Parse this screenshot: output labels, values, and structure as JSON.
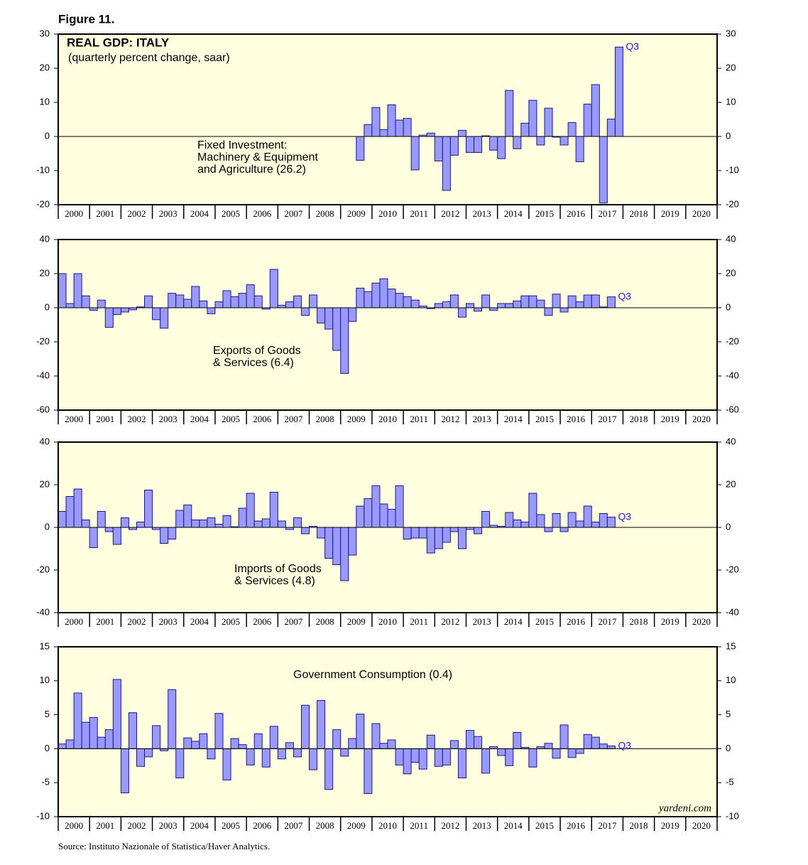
{
  "figure": "Figure 11.",
  "source": "Source: Instituto Nazionale of Statistica/Haver Analytics.",
  "watermark": "yardeni.com",
  "chart_data": [
    {
      "type": "bar",
      "title": "REAL GDP: ITALY",
      "subtitle": "(quarterly percent change, saar)",
      "annotation": [
        "Fixed Investment:",
        "Machinery & Equipment",
        "and Agriculture (26.2)"
      ],
      "end_label": "Q3",
      "color": "#9999ff",
      "categories": [
        "2000",
        null,
        null,
        null,
        "2001",
        null,
        null,
        null,
        "2002",
        null,
        null,
        null,
        "2003",
        null,
        null,
        null,
        "2004",
        null,
        null,
        null,
        "2005",
        null,
        null,
        null,
        "2006",
        null,
        null,
        null,
        "2007",
        null,
        null,
        null,
        "2008",
        null,
        null,
        null,
        "2009",
        null,
        null,
        null,
        "2010",
        null,
        null,
        null,
        "2011",
        null,
        null,
        null,
        "2012",
        null,
        null,
        null,
        "2013",
        null,
        null,
        null,
        "2014",
        null,
        null,
        null,
        "2015",
        null,
        null,
        null,
        "2016",
        null,
        null,
        null,
        "2017",
        null,
        null,
        null,
        "2018",
        null,
        null,
        null,
        "2019",
        null,
        null,
        null,
        "2020",
        null,
        null,
        null
      ],
      "values": [
        null,
        null,
        null,
        null,
        null,
        null,
        null,
        null,
        null,
        null,
        null,
        null,
        null,
        null,
        null,
        null,
        null,
        null,
        null,
        null,
        null,
        null,
        null,
        null,
        null,
        null,
        null,
        null,
        null,
        null,
        null,
        null,
        null,
        null,
        null,
        null,
        null,
        null,
        -7,
        3.5,
        8.5,
        2,
        9.3,
        4.8,
        5.3,
        -9.8,
        0.4,
        1,
        -7.2,
        -15.8,
        -5.5,
        1.8,
        -4.7,
        -4.7,
        0.2,
        -4,
        -6.5,
        13.5,
        -3.6,
        3.9,
        10.6,
        -2.5,
        8.3,
        -0.2,
        -2.5,
        4.1,
        -7.4,
        9.5,
        15.2,
        -19.5,
        5.1,
        26.2,
        null,
        null,
        null,
        null,
        null,
        null,
        null,
        null,
        null,
        null,
        null,
        null
      ],
      "ylim": [
        -20,
        30
      ],
      "yticks": [
        -20,
        -10,
        0,
        10,
        20,
        30
      ]
    },
    {
      "type": "bar",
      "annotation": [
        "Exports of Goods",
        "& Services (6.4)"
      ],
      "end_label": "Q3",
      "color": "#9999ff",
      "categories": [
        "2000",
        null,
        null,
        null,
        "2001",
        null,
        null,
        null,
        "2002",
        null,
        null,
        null,
        "2003",
        null,
        null,
        null,
        "2004",
        null,
        null,
        null,
        "2005",
        null,
        null,
        null,
        "2006",
        null,
        null,
        null,
        "2007",
        null,
        null,
        null,
        "2008",
        null,
        null,
        null,
        "2009",
        null,
        null,
        null,
        "2010",
        null,
        null,
        null,
        "2011",
        null,
        null,
        null,
        "2012",
        null,
        null,
        null,
        "2013",
        null,
        null,
        null,
        "2014",
        null,
        null,
        null,
        "2015",
        null,
        null,
        null,
        "2016",
        null,
        null,
        null,
        "2017",
        null,
        null,
        null,
        "2018",
        null,
        null,
        null,
        "2019",
        null,
        null,
        null,
        "2020",
        null,
        null,
        null
      ],
      "values": [
        20,
        2.5,
        20,
        7,
        -1.5,
        4.5,
        -11.5,
        -4,
        -2.5,
        -1.2,
        0.5,
        7,
        -7,
        -12,
        8.5,
        7.5,
        5,
        12.5,
        4,
        -3.5,
        3.5,
        10,
        6.5,
        8.5,
        13.5,
        7,
        -0.8,
        22.5,
        1.5,
        3.5,
        7,
        -4.5,
        7.5,
        -9,
        -12.5,
        -25,
        -38.5,
        -8,
        11.5,
        9.5,
        14.5,
        17,
        11,
        8.5,
        6.5,
        4.5,
        1,
        -0.5,
        2.5,
        3.5,
        7.5,
        -5.5,
        2.5,
        -2,
        7.5,
        -1.5,
        2.5,
        2.5,
        4,
        7,
        7,
        4.5,
        -4.5,
        8,
        -2.5,
        7,
        3.5,
        7.5,
        7.5,
        0.5,
        6.4,
        null,
        null,
        null,
        null,
        null,
        null,
        null,
        null,
        null,
        null,
        null,
        null,
        null
      ],
      "ylim": [
        -60,
        40
      ],
      "yticks": [
        -60,
        -40,
        -20,
        0,
        20,
        40
      ]
    },
    {
      "type": "bar",
      "annotation": [
        "Imports of Goods",
        "& Services (4.8)"
      ],
      "end_label": "Q3",
      "color": "#9999ff",
      "categories": [
        "2000",
        null,
        null,
        null,
        "2001",
        null,
        null,
        null,
        "2002",
        null,
        null,
        null,
        "2003",
        null,
        null,
        null,
        "2004",
        null,
        null,
        null,
        "2005",
        null,
        null,
        null,
        "2006",
        null,
        null,
        null,
        "2007",
        null,
        null,
        null,
        "2008",
        null,
        null,
        null,
        "2009",
        null,
        null,
        null,
        "2010",
        null,
        null,
        null,
        "2011",
        null,
        null,
        null,
        "2012",
        null,
        null,
        null,
        "2013",
        null,
        null,
        null,
        "2014",
        null,
        null,
        null,
        "2015",
        null,
        null,
        null,
        "2016",
        null,
        null,
        null,
        "2017",
        null,
        null,
        null,
        "2018",
        null,
        null,
        null,
        "2019",
        null,
        null,
        null,
        "2020",
        null,
        null,
        null
      ],
      "values": [
        7.5,
        14.5,
        18,
        3.5,
        -9.5,
        7.5,
        -2,
        -8,
        4.5,
        -1,
        2.5,
        17.5,
        -1,
        -7.5,
        -5.5,
        8,
        10.5,
        3.5,
        3.5,
        4.5,
        1.5,
        5.5,
        0.3,
        9,
        16,
        3,
        4,
        16.5,
        3,
        -1,
        4.5,
        -3,
        0.5,
        -5,
        -14.5,
        -17.5,
        -25,
        -13,
        10,
        13.5,
        19.5,
        11,
        8.5,
        19.5,
        -5.5,
        -5,
        -5,
        -12,
        -10,
        -7,
        -2,
        -10,
        -1,
        -3,
        7.5,
        1,
        0.5,
        7,
        3.5,
        2.5,
        16,
        6,
        -2,
        6.5,
        -2,
        7,
        3,
        10,
        2.5,
        6.5,
        4.8,
        null,
        null,
        null,
        null,
        null,
        null,
        null,
        null,
        null,
        null,
        null,
        null,
        null
      ],
      "ylim": [
        -40,
        40
      ],
      "yticks": [
        -40,
        -20,
        0,
        20,
        40
      ]
    },
    {
      "type": "bar",
      "annotation": [
        "Government Consumption (0.4)"
      ],
      "end_label": "Q3",
      "color": "#9999ff",
      "categories": [
        "2000",
        null,
        null,
        null,
        "2001",
        null,
        null,
        null,
        "2002",
        null,
        null,
        null,
        "2003",
        null,
        null,
        null,
        "2004",
        null,
        null,
        null,
        "2005",
        null,
        null,
        null,
        "2006",
        null,
        null,
        null,
        "2007",
        null,
        null,
        null,
        "2008",
        null,
        null,
        null,
        "2009",
        null,
        null,
        null,
        "2010",
        null,
        null,
        null,
        "2011",
        null,
        null,
        null,
        "2012",
        null,
        null,
        null,
        "2013",
        null,
        null,
        null,
        "2014",
        null,
        null,
        null,
        "2015",
        null,
        null,
        null,
        "2016",
        null,
        null,
        null,
        "2017",
        null,
        null,
        null,
        "2018",
        null,
        null,
        null,
        "2019",
        null,
        null,
        null,
        "2020",
        null,
        null,
        null
      ],
      "values": [
        0.7,
        1.3,
        8.2,
        3.9,
        4.6,
        1.7,
        2.8,
        10.2,
        -6.5,
        5.3,
        -2.6,
        -1.2,
        3.4,
        -0.3,
        8.7,
        -4.3,
        1.6,
        1.1,
        2.2,
        -1.5,
        5.2,
        -4.6,
        1.5,
        0.6,
        -2.4,
        2.2,
        -2.7,
        3.3,
        -1.5,
        0.9,
        -1.2,
        6.4,
        -3.1,
        7.1,
        -6,
        2.8,
        -1.1,
        1.5,
        5.1,
        -6.6,
        3.7,
        0.8,
        1.3,
        -2.4,
        -3.7,
        -2,
        -3,
        2,
        -2.6,
        -2.4,
        1.2,
        -4.3,
        2.7,
        1.8,
        -3.6,
        0.3,
        -1,
        -2.5,
        2.4,
        0.2,
        -2.7,
        0.3,
        0.8,
        -1.4,
        3.5,
        -1.3,
        -0.7,
        2.1,
        1.7,
        0.7,
        0.4,
        null,
        null,
        null,
        null,
        null,
        null,
        null,
        null,
        null,
        null,
        null,
        null,
        null
      ],
      "ylim": [
        -10,
        15
      ],
      "yticks": [
        -10,
        -5,
        0,
        5,
        10,
        15
      ]
    }
  ]
}
